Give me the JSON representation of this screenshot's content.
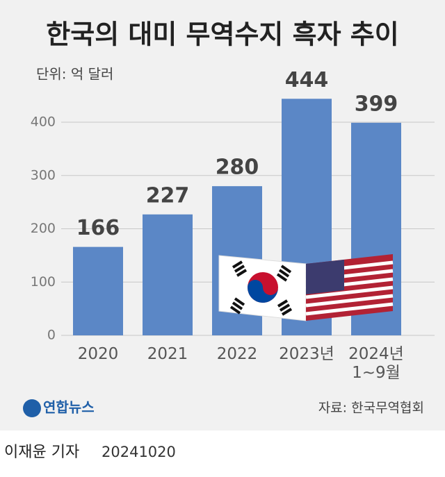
{
  "chart_data": {
    "type": "bar",
    "title": "한국의 대미 무역수지 흑자 추이",
    "subtitle": "단위: 억 달러",
    "categories": [
      "2020",
      "2021",
      "2022",
      "2023년",
      "2024년 1~9월"
    ],
    "values": [
      166,
      227,
      280,
      444,
      399
    ],
    "color": "#5b87c6",
    "ylim": [
      0,
      460
    ],
    "yticks": [
      0,
      100,
      200,
      300,
      400
    ],
    "grid": true,
    "source": "자료: 한국무역협회",
    "logo": "연합뉴스"
  },
  "footer": {
    "author": "이재윤 기자",
    "date": "20241020"
  }
}
